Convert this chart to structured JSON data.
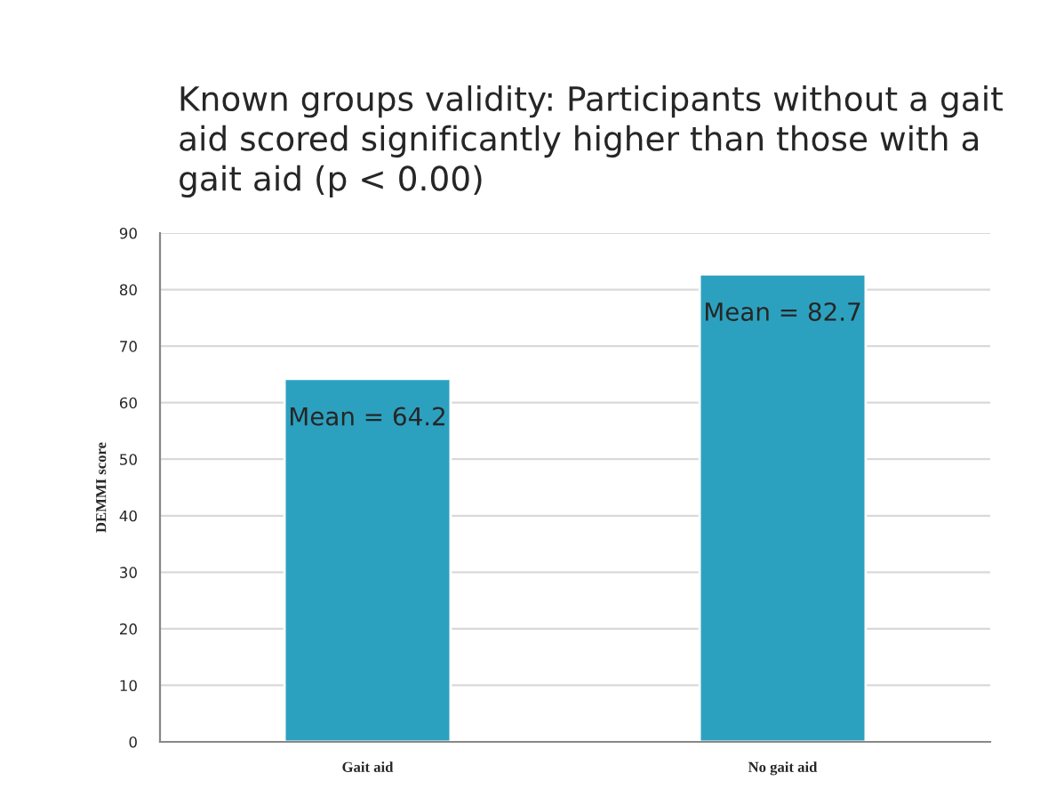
{
  "chart_data": {
    "type": "bar",
    "title": "Known groups validity: Participants without a gait aid scored significantly higher than those with a gait aid (p < 0.00)",
    "ylabel": "DEMMI score",
    "categories": [
      "Gait aid",
      "No gait aid"
    ],
    "values": [
      64.2,
      82.7
    ],
    "value_labels": [
      "Mean = 64.2",
      "Mean = 82.7"
    ],
    "color": "#2ca1bf",
    "ylim": [
      0,
      90
    ],
    "yticks": [
      0,
      10,
      20,
      30,
      40,
      50,
      60,
      70,
      80,
      90
    ],
    "grid": "y",
    "legend": false
  }
}
